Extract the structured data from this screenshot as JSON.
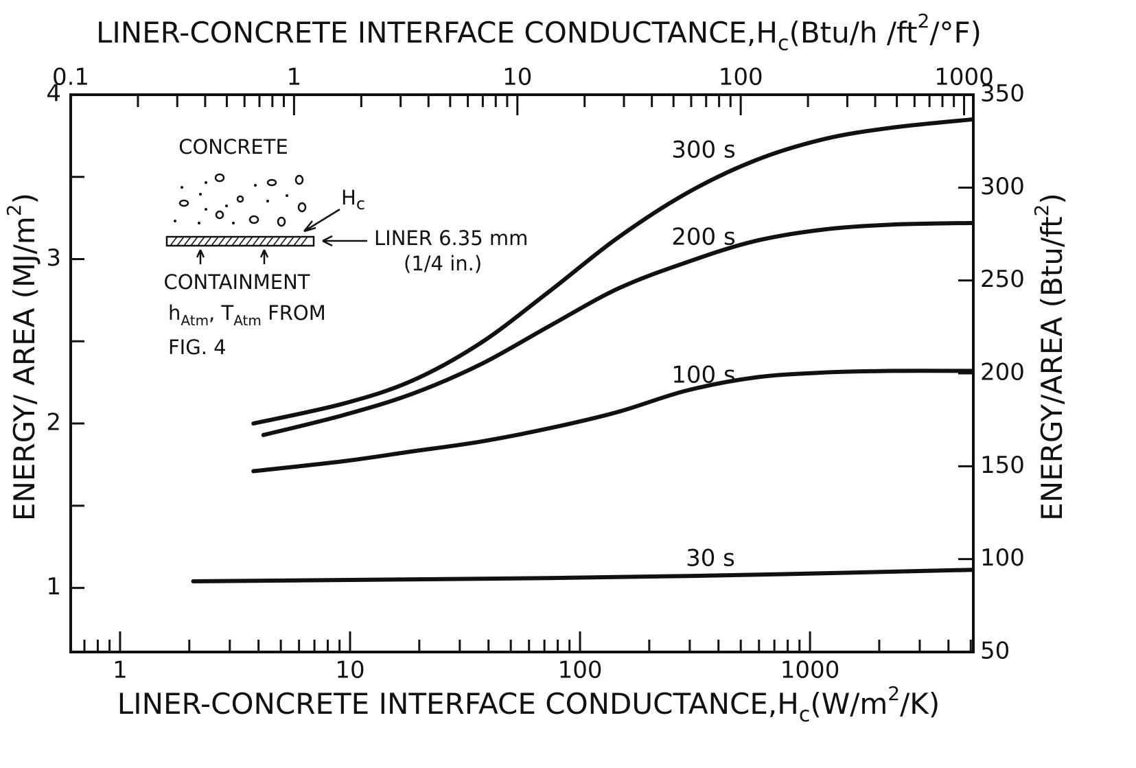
{
  "chart_data": {
    "type": "line",
    "xlabel": [
      "LINER-CONCRETE INTERFACE CONDUCTANCE,H",
      "c",
      "(W/m",
      "2",
      "/K)"
    ],
    "x2label": [
      "LINER-CONCRETE INTERFACE CONDUCTANCE,H",
      "c",
      "(Btu/h /ft",
      "2",
      "/°F)"
    ],
    "ylabel": [
      "ENERGY/ AREA (MJ/m",
      "2",
      ")"
    ],
    "y2label": [
      "ENERGY/AREA (Btu/ft",
      "2",
      ")"
    ],
    "xscale": "log",
    "xlim": [
      0.61,
      5130
    ],
    "xticks": [
      1,
      10,
      100,
      1000
    ],
    "xminor_ticks": [
      0.7,
      0.8,
      0.9,
      2,
      3,
      4,
      5,
      6,
      7,
      8,
      9,
      20,
      30,
      40,
      50,
      60,
      70,
      80,
      90,
      200,
      300,
      400,
      500,
      600,
      700,
      800,
      900,
      2000,
      3000,
      4000,
      5000
    ],
    "x2lim": [
      0.1,
      1100
    ],
    "x2ticks": [
      0.1,
      1,
      10,
      100,
      1000
    ],
    "x2minor_ticks": [
      0.2,
      0.3,
      0.4,
      0.5,
      0.6,
      0.7,
      0.8,
      0.9,
      2,
      3,
      4,
      5,
      6,
      7,
      8,
      9,
      20,
      30,
      40,
      50,
      60,
      70,
      80,
      90,
      200,
      300,
      400,
      500,
      600,
      700,
      800,
      900
    ],
    "ylim": [
      0.61,
      4
    ],
    "yticks": [
      1,
      2,
      3,
      4
    ],
    "yminor_ticks": [
      1.5,
      2.5,
      3.5
    ],
    "y2lim": [
      50,
      350
    ],
    "y2ticks": [
      50,
      100,
      150,
      200,
      250,
      300,
      350
    ],
    "grid": false,
    "series": [
      {
        "name": "300 s",
        "color": "#111111",
        "x": [
          3.8,
          9.3,
          18.6,
          37,
          73,
          146,
          290,
          577,
          1150,
          2280,
          5100
        ],
        "values": [
          2.0,
          2.12,
          2.26,
          2.49,
          2.8,
          3.13,
          3.4,
          3.6,
          3.73,
          3.8,
          3.85
        ]
      },
      {
        "name": "200 s",
        "color": "#111111",
        "x": [
          4.2,
          9.3,
          18.6,
          37,
          73,
          146,
          290,
          577,
          1150,
          2280,
          5100
        ],
        "values": [
          1.93,
          2.05,
          2.18,
          2.36,
          2.59,
          2.82,
          2.98,
          3.11,
          3.18,
          3.21,
          3.22
        ]
      },
      {
        "name": "100 s",
        "color": "#111111",
        "x": [
          3.8,
          9.3,
          18.6,
          37,
          73,
          146,
          290,
          577,
          1150,
          2280,
          5100
        ],
        "values": [
          1.71,
          1.77,
          1.83,
          1.89,
          1.97,
          2.07,
          2.2,
          2.28,
          2.31,
          2.32,
          2.32
        ]
      },
      {
        "name": "30 s",
        "color": "#111111",
        "x": [
          2.08,
          73,
          577,
          5100
        ],
        "values": [
          1.04,
          1.06,
          1.08,
          1.11
        ]
      }
    ],
    "annotations": {
      "concrete": "CONCRETE",
      "hc": [
        "H",
        "c"
      ],
      "liner": "LINER 6.35 mm",
      "liner_in": "(1/4 in.)",
      "containment": "CONTAINMENT",
      "boundary": [
        "h",
        "Atm",
        ", T",
        "Atm",
        " FROM"
      ],
      "fig": "FIG. 4"
    }
  }
}
